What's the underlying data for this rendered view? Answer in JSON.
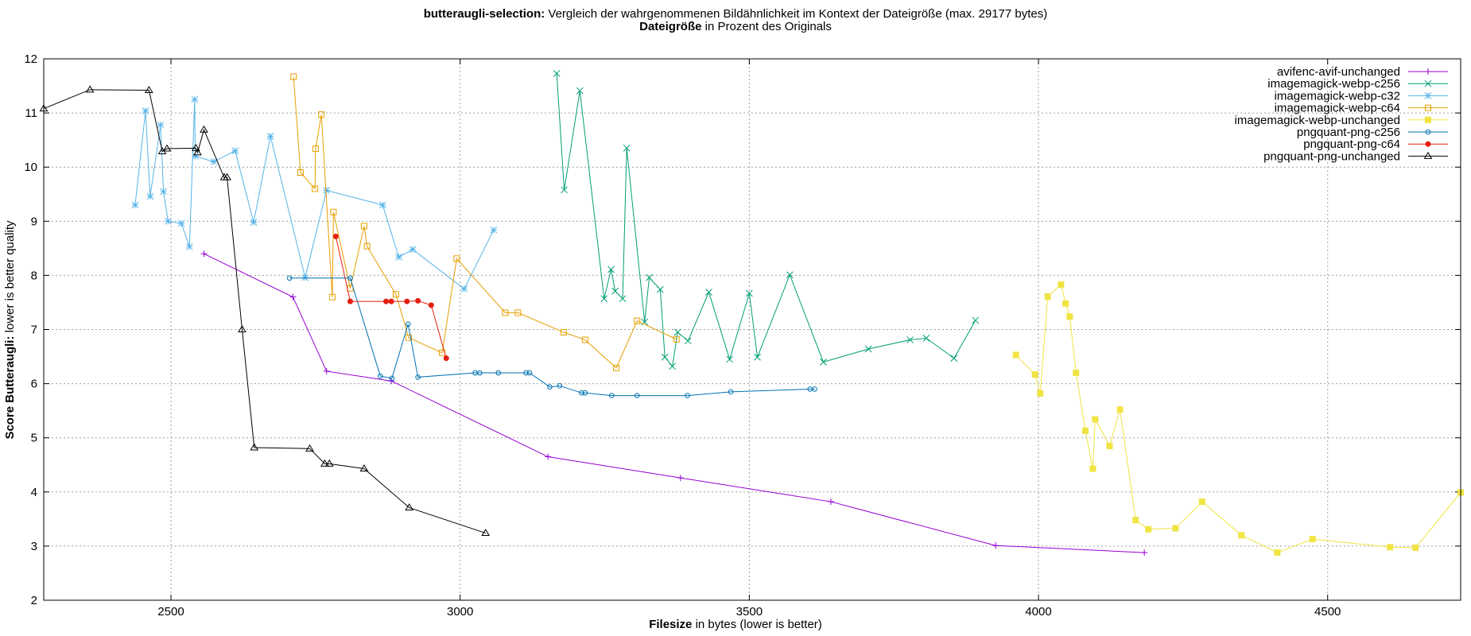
{
  "chart_data": {
    "type": "line",
    "title": {
      "line1_bold": "butteraugli-selection:",
      "line1_rest": " Vergleich der wahrgenommenen Bildähnlichkeit im Kontext der Dateigröße (max. 29177 bytes)",
      "line2_bold": "Dateigröße",
      "line2_rest": " in Prozent des Originals"
    },
    "xlabel": {
      "bold": "Filesize",
      "rest": " in bytes (lower is better)"
    },
    "ylabel": {
      "bold": "Score Butteraugli:",
      "rest": " lower is better quality"
    },
    "xlim": [
      2280,
      4730
    ],
    "ylim": [
      2,
      12
    ],
    "xticks": [
      2500,
      3000,
      3500,
      4000,
      4500
    ],
    "yticks": [
      2,
      3,
      4,
      5,
      6,
      7,
      8,
      9,
      10,
      11,
      12
    ],
    "grid": true,
    "legend_position": "top-right",
    "series": [
      {
        "name": "avifenc-avif-unchanged",
        "color": "#9400d3",
        "marker": "plus",
        "points": [
          [
            2557,
            8.4
          ],
          [
            2711,
            7.6
          ],
          [
            2769,
            6.23
          ],
          [
            2881,
            6.05
          ],
          [
            3152,
            4.65
          ],
          [
            3381,
            4.26
          ],
          [
            3641,
            3.82
          ],
          [
            3926,
            3.01
          ],
          [
            4183,
            2.88
          ]
        ]
      },
      {
        "name": "imagemagick-webp-c256",
        "color": "#009e73",
        "marker": "cross",
        "points": [
          [
            3167,
            11.73
          ],
          [
            3180,
            9.58
          ],
          [
            3207,
            11.41
          ],
          [
            3249,
            7.57
          ],
          [
            3261,
            8.11
          ],
          [
            3268,
            7.71
          ],
          [
            3281,
            7.57
          ],
          [
            3288,
            10.35
          ],
          [
            3319,
            7.14
          ],
          [
            3327,
            7.96
          ],
          [
            3346,
            7.74
          ],
          [
            3354,
            6.49
          ],
          [
            3367,
            6.32
          ],
          [
            3376,
            6.95
          ],
          [
            3394,
            6.79
          ],
          [
            3430,
            7.69
          ],
          [
            3466,
            6.45
          ],
          [
            3500,
            7.67
          ],
          [
            3514,
            6.49
          ],
          [
            3570,
            8.01
          ],
          [
            3628,
            6.4
          ],
          [
            3706,
            6.64
          ],
          [
            3778,
            6.81
          ],
          [
            3806,
            6.84
          ],
          [
            3854,
            6.47
          ],
          [
            3891,
            7.17
          ]
        ]
      },
      {
        "name": "imagemagick-webp-c32",
        "color": "#56b4e9",
        "marker": "star",
        "points": [
          [
            2438,
            9.3
          ],
          [
            2456,
            11.04
          ],
          [
            2464,
            9.46
          ],
          [
            2482,
            10.78
          ],
          [
            2487,
            9.55
          ],
          [
            2495,
            9.0
          ],
          [
            2518,
            8.96
          ],
          [
            2532,
            8.53
          ],
          [
            2541,
            11.25
          ],
          [
            2542,
            10.2
          ],
          [
            2574,
            10.1
          ],
          [
            2611,
            10.3
          ],
          [
            2643,
            8.98
          ],
          [
            2672,
            10.57
          ],
          [
            2732,
            7.96
          ],
          [
            2769,
            9.57
          ],
          [
            2866,
            9.3
          ],
          [
            2894,
            8.34
          ],
          [
            2918,
            8.48
          ],
          [
            3007,
            7.75
          ],
          [
            3058,
            8.84
          ]
        ]
      },
      {
        "name": "imagemagick-webp-c64",
        "color": "#e69f00",
        "marker": "square",
        "points": [
          [
            2712,
            11.67
          ],
          [
            2724,
            9.9
          ],
          [
            2749,
            9.6
          ],
          [
            2750,
            10.34
          ],
          [
            2760,
            10.97
          ],
          [
            2779,
            7.6
          ],
          [
            2781,
            9.17
          ],
          [
            2810,
            7.76
          ],
          [
            2834,
            8.91
          ],
          [
            2839,
            8.54
          ],
          [
            2889,
            7.65
          ],
          [
            2911,
            6.85
          ],
          [
            2969,
            6.57
          ],
          [
            2994,
            8.31
          ],
          [
            3078,
            7.31
          ],
          [
            3100,
            7.31
          ],
          [
            3179,
            6.95
          ],
          [
            3216,
            6.81
          ],
          [
            3270,
            6.29
          ],
          [
            3306,
            7.16
          ],
          [
            3374,
            6.82
          ]
        ]
      },
      {
        "name": "imagemagick-webp-unchanged",
        "color": "#f0e442",
        "marker": "filled-square",
        "points": [
          [
            3961,
            6.53
          ],
          [
            3994,
            6.17
          ],
          [
            4003,
            5.82
          ],
          [
            4016,
            7.61
          ],
          [
            4039,
            7.83
          ],
          [
            4047,
            7.48
          ],
          [
            4054,
            7.24
          ],
          [
            4065,
            6.2
          ],
          [
            4081,
            5.13
          ],
          [
            4094,
            4.43
          ],
          [
            4098,
            5.34
          ],
          [
            4123,
            4.85
          ],
          [
            4141,
            5.52
          ],
          [
            4168,
            3.48
          ],
          [
            4190,
            3.31
          ],
          [
            4237,
            3.33
          ],
          [
            4283,
            3.82
          ],
          [
            4351,
            3.2
          ],
          [
            4413,
            2.88
          ],
          [
            4474,
            3.13
          ],
          [
            4608,
            2.98
          ],
          [
            4652,
            2.97
          ],
          [
            4730,
            3.99
          ]
        ]
      },
      {
        "name": "pngquant-png-c256",
        "color": "#0072b2",
        "marker": "circle",
        "points": [
          [
            2705,
            7.95
          ],
          [
            2810,
            7.95
          ],
          [
            2862,
            6.14
          ],
          [
            2882,
            6.1
          ],
          [
            2910,
            7.1
          ],
          [
            2927,
            6.12
          ],
          [
            3026,
            6.2
          ],
          [
            3034,
            6.2
          ],
          [
            3066,
            6.2
          ],
          [
            3114,
            6.2
          ],
          [
            3120,
            6.2
          ],
          [
            3155,
            5.94
          ],
          [
            3172,
            5.96
          ],
          [
            3210,
            5.83
          ],
          [
            3216,
            5.83
          ],
          [
            3262,
            5.78
          ],
          [
            3306,
            5.78
          ],
          [
            3393,
            5.78
          ],
          [
            3468,
            5.85
          ],
          [
            3605,
            5.9
          ],
          [
            3613,
            5.9
          ]
        ]
      },
      {
        "name": "pngquant-png-c64",
        "color": "#e51e10",
        "marker": "filled-circle",
        "points": [
          [
            2785,
            8.72
          ],
          [
            2810,
            7.52
          ],
          [
            2872,
            7.52
          ],
          [
            2881,
            7.52
          ],
          [
            2908,
            7.52
          ],
          [
            2927,
            7.53
          ],
          [
            2950,
            7.45
          ],
          [
            2976,
            6.47
          ]
        ]
      },
      {
        "name": "pngquant-png-unchanged",
        "color": "#000000",
        "marker": "triangle",
        "points": [
          [
            2280,
            11.08
          ],
          [
            2360,
            11.43
          ],
          [
            2462,
            11.42
          ],
          [
            2485,
            10.29
          ],
          [
            2493,
            10.34
          ],
          [
            2543,
            10.35
          ],
          [
            2546,
            10.27
          ],
          [
            2557,
            10.69
          ],
          [
            2592,
            9.81
          ],
          [
            2597,
            9.81
          ],
          [
            2623,
            7.0
          ],
          [
            2644,
            4.82
          ],
          [
            2740,
            4.8
          ],
          [
            2766,
            4.52
          ],
          [
            2774,
            4.52
          ],
          [
            2834,
            4.43
          ],
          [
            2912,
            3.71
          ],
          [
            3044,
            3.24
          ]
        ]
      }
    ]
  }
}
